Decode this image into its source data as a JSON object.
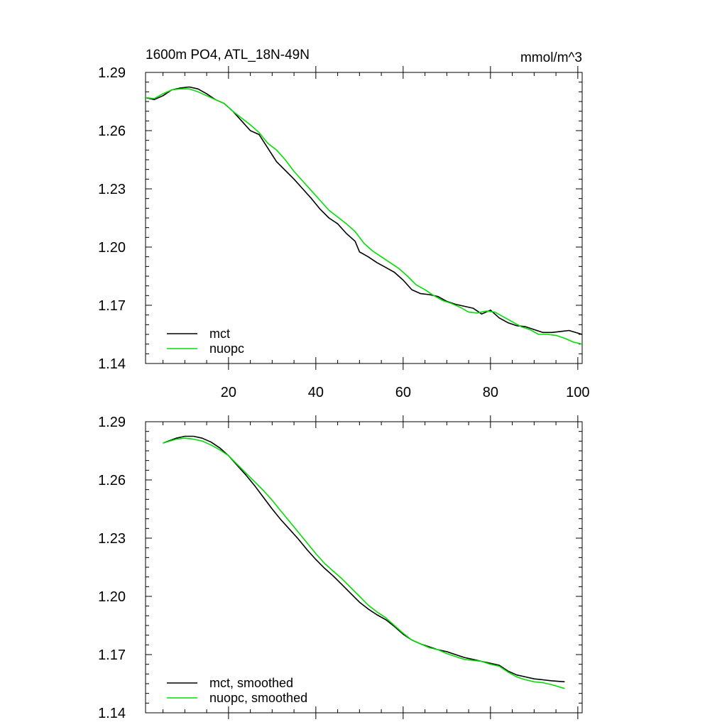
{
  "chart_data": [
    {
      "type": "line",
      "title": "1600m PO4, ATL_18N-49N",
      "units": "mmol/m^3",
      "xlim": [
        1,
        101
      ],
      "ylim": [
        1.14,
        1.29
      ],
      "xticks": [
        "20",
        "40",
        "60",
        "80",
        "100"
      ],
      "yticks": [
        "1.29",
        "1.26",
        "1.23",
        "1.20",
        "1.17",
        "1.14"
      ],
      "legend": "bottom-left",
      "series": [
        {
          "name": "mct",
          "color": "#000000",
          "points": [
            [
              1,
              1.277
            ],
            [
              3,
              1.276
            ],
            [
              5,
              1.278
            ],
            [
              7,
              1.281
            ],
            [
              9,
              1.282
            ],
            [
              11,
              1.2825
            ],
            [
              13,
              1.2815
            ],
            [
              15,
              1.279
            ],
            [
              17,
              1.276
            ],
            [
              19,
              1.274
            ],
            [
              21,
              1.27
            ],
            [
              23,
              1.265
            ],
            [
              25,
              1.26
            ],
            [
              27,
              1.258
            ],
            [
              29,
              1.251
            ],
            [
              31,
              1.244
            ],
            [
              33,
              1.2395
            ],
            [
              35,
              1.235
            ],
            [
              37,
              1.23
            ],
            [
              39,
              1.225
            ],
            [
              41,
              1.2195
            ],
            [
              43,
              1.215
            ],
            [
              45,
              1.212
            ],
            [
              47,
              1.207
            ],
            [
              49,
              1.203
            ],
            [
              50,
              1.1975
            ],
            [
              52,
              1.195
            ],
            [
              54,
              1.192
            ],
            [
              56,
              1.1895
            ],
            [
              58,
              1.187
            ],
            [
              60,
              1.183
            ],
            [
              62,
              1.178
            ],
            [
              64,
              1.176
            ],
            [
              66,
              1.1755
            ],
            [
              68,
              1.1745
            ],
            [
              70,
              1.172
            ],
            [
              72,
              1.1705
            ],
            [
              74,
              1.1695
            ],
            [
              76,
              1.1685
            ],
            [
              78,
              1.1655
            ],
            [
              80,
              1.1675
            ],
            [
              82,
              1.1635
            ],
            [
              84,
              1.161
            ],
            [
              86,
              1.1595
            ],
            [
              88,
              1.159
            ],
            [
              90,
              1.1575
            ],
            [
              92,
              1.156
            ],
            [
              94,
              1.156
            ],
            [
              96,
              1.1565
            ],
            [
              98,
              1.157
            ],
            [
              101,
              1.155
            ]
          ]
        },
        {
          "name": "nuopc",
          "color": "#00e000",
          "points": [
            [
              1,
              1.277
            ],
            [
              3,
              1.2765
            ],
            [
              5,
              1.279
            ],
            [
              7,
              1.281
            ],
            [
              9,
              1.2815
            ],
            [
              11,
              1.2815
            ],
            [
              13,
              1.28
            ],
            [
              15,
              1.278
            ],
            [
              17,
              1.276
            ],
            [
              19,
              1.274
            ],
            [
              21,
              1.27
            ],
            [
              23,
              1.2665
            ],
            [
              25,
              1.263
            ],
            [
              27,
              1.259
            ],
            [
              29,
              1.2535
            ],
            [
              31,
              1.25
            ],
            [
              33,
              1.245
            ],
            [
              35,
              1.239
            ],
            [
              37,
              1.234
            ],
            [
              39,
              1.229
            ],
            [
              41,
              1.224
            ],
            [
              43,
              1.219
            ],
            [
              45,
              1.2155
            ],
            [
              47,
              1.212
            ],
            [
              49,
              1.208
            ],
            [
              51,
              1.202
            ],
            [
              53,
              1.198
            ],
            [
              55,
              1.195
            ],
            [
              57,
              1.192
            ],
            [
              59,
              1.189
            ],
            [
              61,
              1.185
            ],
            [
              63,
              1.1805
            ],
            [
              65,
              1.178
            ],
            [
              67,
              1.175
            ],
            [
              69,
              1.1725
            ],
            [
              71,
              1.171
            ],
            [
              73,
              1.169
            ],
            [
              75,
              1.1665
            ],
            [
              77,
              1.166
            ],
            [
              79,
              1.167
            ],
            [
              81,
              1.1665
            ],
            [
              83,
              1.164
            ],
            [
              85,
              1.1615
            ],
            [
              87,
              1.159
            ],
            [
              89,
              1.1575
            ],
            [
              91,
              1.155
            ],
            [
              93,
              1.155
            ],
            [
              95,
              1.1545
            ],
            [
              97,
              1.153
            ],
            [
              99,
              1.151
            ],
            [
              101,
              1.15
            ]
          ]
        }
      ]
    },
    {
      "type": "line",
      "xlim": [
        1,
        101
      ],
      "ylim": [
        1.14,
        1.29
      ],
      "yticks": [
        "1.29",
        "1.26",
        "1.23",
        "1.20",
        "1.17",
        "1.14"
      ],
      "legend": "bottom-left",
      "series": [
        {
          "name": "mct, smoothed",
          "color": "#000000",
          "points": [
            [
              5,
              1.279
            ],
            [
              8,
              1.2815
            ],
            [
              10,
              1.2825
            ],
            [
              12,
              1.2825
            ],
            [
              14,
              1.2815
            ],
            [
              16,
              1.2795
            ],
            [
              18,
              1.2765
            ],
            [
              20,
              1.2725
            ],
            [
              22,
              1.2675
            ],
            [
              24,
              1.2625
            ],
            [
              26,
              1.257
            ],
            [
              28,
              1.251
            ],
            [
              30,
              1.245
            ],
            [
              32,
              1.2395
            ],
            [
              34,
              1.2345
            ],
            [
              36,
              1.2295
            ],
            [
              38,
              1.224
            ],
            [
              40,
              1.219
            ],
            [
              42,
              1.2145
            ],
            [
              44,
              1.2105
            ],
            [
              46,
              1.206
            ],
            [
              48,
              1.2015
            ],
            [
              50,
              1.197
            ],
            [
              52,
              1.1935
            ],
            [
              54,
              1.1905
            ],
            [
              56,
              1.188
            ],
            [
              58,
              1.1845
            ],
            [
              60,
              1.1805
            ],
            [
              62,
              1.1775
            ],
            [
              64,
              1.1755
            ],
            [
              66,
              1.174
            ],
            [
              68,
              1.1725
            ],
            [
              70,
              1.1715
            ],
            [
              72,
              1.17
            ],
            [
              74,
              1.1685
            ],
            [
              76,
              1.1675
            ],
            [
              78,
              1.1665
            ],
            [
              80,
              1.1655
            ],
            [
              82,
              1.1645
            ],
            [
              84,
              1.1615
            ],
            [
              86,
              1.1595
            ],
            [
              88,
              1.1585
            ],
            [
              90,
              1.1575
            ],
            [
              92,
              1.157
            ],
            [
              94,
              1.1565
            ],
            [
              97,
              1.156
            ]
          ]
        },
        {
          "name": "nuopc, smoothed",
          "color": "#00e000",
          "points": [
            [
              5,
              1.279
            ],
            [
              8,
              1.281
            ],
            [
              10,
              1.2815
            ],
            [
              12,
              1.281
            ],
            [
              14,
              1.28
            ],
            [
              16,
              1.278
            ],
            [
              18,
              1.2755
            ],
            [
              20,
              1.2725
            ],
            [
              22,
              1.268
            ],
            [
              24,
              1.2635
            ],
            [
              26,
              1.259
            ],
            [
              28,
              1.2545
            ],
            [
              30,
              1.2495
            ],
            [
              32,
              1.244
            ],
            [
              34,
              1.2385
            ],
            [
              36,
              1.233
            ],
            [
              38,
              1.2275
            ],
            [
              40,
              1.222
            ],
            [
              42,
              1.217
            ],
            [
              44,
              1.213
            ],
            [
              46,
              1.209
            ],
            [
              48,
              1.2045
            ],
            [
              50,
              1.2
            ],
            [
              52,
              1.1955
            ],
            [
              54,
              1.192
            ],
            [
              56,
              1.189
            ],
            [
              58,
              1.185
            ],
            [
              60,
              1.181
            ],
            [
              62,
              1.1775
            ],
            [
              64,
              1.1755
            ],
            [
              66,
              1.1735
            ],
            [
              68,
              1.1725
            ],
            [
              70,
              1.1705
            ],
            [
              72,
              1.169
            ],
            [
              74,
              1.1675
            ],
            [
              76,
              1.167
            ],
            [
              78,
              1.1665
            ],
            [
              80,
              1.165
            ],
            [
              82,
              1.164
            ],
            [
              84,
              1.161
            ],
            [
              86,
              1.1585
            ],
            [
              88,
              1.157
            ],
            [
              90,
              1.156
            ],
            [
              92,
              1.1555
            ],
            [
              94,
              1.1545
            ],
            [
              97,
              1.1525
            ]
          ]
        }
      ]
    }
  ]
}
